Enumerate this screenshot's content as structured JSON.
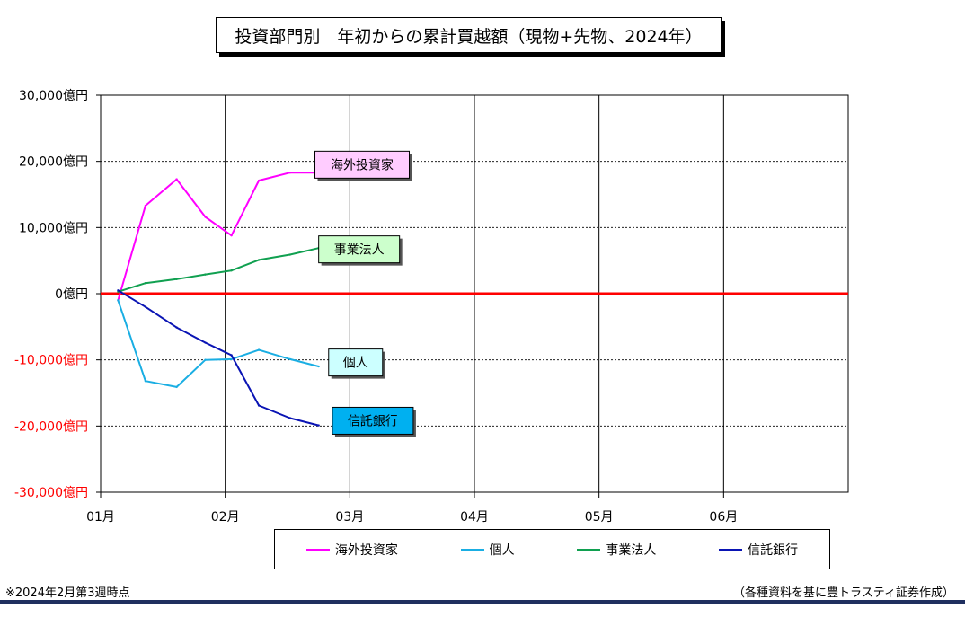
{
  "title": "投資部門別　年初からの累計買越額（現物+先物、2024年）",
  "footnote": "※2024年2月第3週時点",
  "source": "（各種資料を基に豊トラスティ証券作成）",
  "chart_data": {
    "type": "line",
    "title": "投資部門別　年初からの累計買越額（現物+先物、2024年）",
    "ylim": [
      -30000,
      30000
    ],
    "xlim": [
      1,
      7
    ],
    "y_ticks": [
      {
        "value": 30000,
        "label": "30,000億円"
      },
      {
        "value": 20000,
        "label": "20,000億円"
      },
      {
        "value": 10000,
        "label": "10,000億円"
      },
      {
        "value": 0,
        "label": "0億円"
      },
      {
        "value": -10000,
        "label": "-10,000億円"
      },
      {
        "value": -20000,
        "label": "-20,000億円"
      },
      {
        "value": -30000,
        "label": "-30,000億円"
      }
    ],
    "x_ticks": [
      {
        "value": 1,
        "label": "01月"
      },
      {
        "value": 2,
        "label": "02月"
      },
      {
        "value": 3,
        "label": "03月"
      },
      {
        "value": 4,
        "label": "04月"
      },
      {
        "value": 5,
        "label": "05月"
      },
      {
        "value": 6,
        "label": "06月"
      }
    ],
    "grid": true,
    "zero_line_color": "#ff0000",
    "negative_tick_color": "#ff0000",
    "series": [
      {
        "name": "海外投資家",
        "color": "#ff00ff",
        "label_bg": "#ffccff",
        "label_at": [
          2.72,
          19500
        ],
        "x": [
          1.14,
          1.36,
          1.61,
          1.84,
          2.05,
          2.27,
          2.52,
          2.75
        ],
        "y": [
          -1000,
          13300,
          17300,
          11600,
          8800,
          17100,
          18300,
          18300
        ]
      },
      {
        "name": "個人",
        "color": "#1aaee3",
        "label_bg": "#ccffff",
        "label_at": [
          2.83,
          -10400
        ],
        "x": [
          1.14,
          1.36,
          1.61,
          1.84,
          2.05,
          2.27,
          2.52,
          2.75
        ],
        "y": [
          -1000,
          -13200,
          -14100,
          -10000,
          -9900,
          -8500,
          -9900,
          -11000
        ]
      },
      {
        "name": "事業法人",
        "color": "#10a050",
        "label_bg": "#ccffcc",
        "label_at": [
          2.75,
          6700
        ],
        "x": [
          1.14,
          1.36,
          1.61,
          1.84,
          2.05,
          2.27,
          2.52,
          2.75
        ],
        "y": [
          300,
          1600,
          2200,
          2900,
          3500,
          5100,
          5900,
          6900
        ]
      },
      {
        "name": "信託銀行",
        "color": "#0a14b4",
        "label_bg": "#00b0f0",
        "label_at": [
          2.86,
          -19200
        ],
        "x": [
          1.14,
          1.36,
          1.61,
          1.84,
          2.05,
          2.27,
          2.52,
          2.75
        ],
        "y": [
          500,
          -2000,
          -5100,
          -7400,
          -9300,
          -16900,
          -18800,
          -19900
        ]
      }
    ],
    "legend": {
      "placement": "bottom",
      "entries": [
        "海外投資家",
        "個人",
        "事業法人",
        "信託銀行"
      ]
    }
  }
}
